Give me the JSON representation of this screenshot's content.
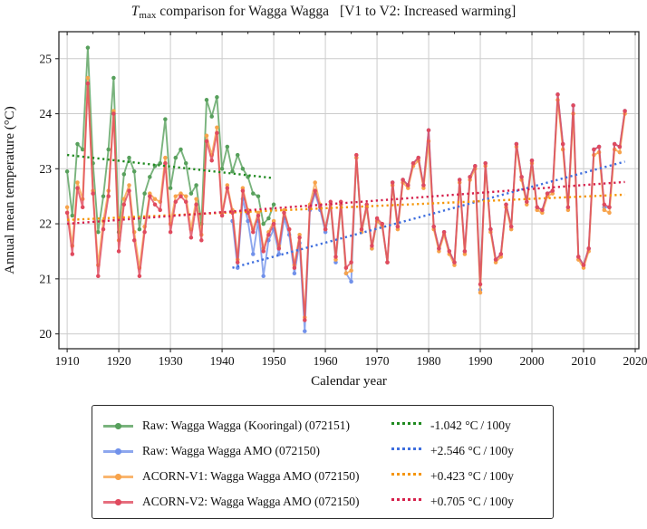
{
  "title": {
    "t": "T",
    "sub": "max",
    "rest": " comparison for Wagga Wagga",
    "bracket": "[V1 to V2: Increased warming]"
  },
  "axes": {
    "xlabel": "Calendar year",
    "ylabel": "Annual mean temperature (°C)",
    "xticks": [
      1910,
      1920,
      1930,
      1940,
      1950,
      1960,
      1970,
      1980,
      1990,
      2000,
      2010,
      2020
    ],
    "yticks": [
      20,
      21,
      22,
      23,
      24,
      25
    ],
    "xlim": [
      1908.4,
      2020.7
    ],
    "ylim": [
      19.73,
      25.49
    ],
    "x_minor_step": 5,
    "grid": true,
    "grid_color": "#cccccc",
    "spine_color": "#2b2b2b",
    "legend_position": "below"
  },
  "chart_data": {
    "type": "line",
    "title": "Tmax comparison for Wagga Wagga [V1 to V2: Increased warming]",
    "xlabel": "Calendar year",
    "ylabel": "Annual mean temperature (°C)",
    "xlim": [
      1908.4,
      2020.7
    ],
    "ylim": [
      19.73,
      25.49
    ],
    "series": [
      {
        "name": "Raw: Wagga Wagga (Kooringal) (072151)",
        "color": "#57a05c",
        "start_year": 1910,
        "values": [
          22.95,
          22.15,
          23.45,
          23.35,
          25.2,
          23.1,
          21.85,
          22.5,
          23.35,
          24.65,
          21.85,
          22.9,
          23.2,
          22.95,
          21.9,
          22.55,
          22.85,
          23.05,
          23.1,
          23.9,
          22.65,
          23.2,
          23.35,
          23.1,
          22.55,
          22.7,
          22.0,
          24.25,
          23.95,
          24.3,
          23.0,
          23.4,
          22.95,
          23.25,
          23.0,
          22.85,
          22.55,
          22.5,
          22.0,
          22.1,
          22.35
        ]
      },
      {
        "name": "Raw: Wagga Wagga AMO (072150)",
        "color": "#7191ea",
        "start_year": 1942,
        "values": [
          22.05,
          21.2,
          22.45,
          22.05,
          21.45,
          22.05,
          21.05,
          21.7,
          21.9,
          21.45,
          22.1,
          21.8,
          21.1,
          21.65,
          20.05,
          22.25,
          22.55,
          22.25,
          21.85,
          22.35,
          21.3,
          22.35,
          21.1,
          20.95,
          23.2,
          21.85,
          22.3,
          21.55,
          22.05,
          21.95,
          21.3,
          22.75,
          21.95,
          22.8,
          22.7,
          23.1,
          23.2,
          22.7,
          23.7,
          21.95,
          21.55,
          21.85,
          21.5,
          21.3,
          22.8,
          21.5,
          22.85,
          23.05,
          20.8,
          23.1,
          21.9,
          21.35,
          21.45,
          22.35,
          21.95,
          23.45,
          22.85,
          22.4,
          23.15,
          22.3,
          22.25,
          22.55,
          22.6,
          24.35,
          23.45,
          22.3,
          24.15,
          21.4,
          21.25,
          21.55,
          23.35,
          23.4,
          22.3,
          22.3,
          23.45,
          23.4,
          24.05
        ]
      },
      {
        "name": "ACORN-V1: Wagga Wagga AMO (072150)",
        "color": "#f7a34b",
        "start_year": 1910,
        "values": [
          22.3,
          21.6,
          22.75,
          22.45,
          24.65,
          22.6,
          21.25,
          22.05,
          22.6,
          24.05,
          21.7,
          22.45,
          22.7,
          21.85,
          21.2,
          21.95,
          22.55,
          22.45,
          22.4,
          23.2,
          22.0,
          22.5,
          22.55,
          22.5,
          21.9,
          22.45,
          21.8,
          23.6,
          23.25,
          23.75,
          22.2,
          22.7,
          22.25,
          21.35,
          22.65,
          22.25,
          21.9,
          22.2,
          21.55,
          21.85,
          22.05,
          21.6,
          22.25,
          21.9,
          21.25,
          21.8,
          20.3,
          22.35,
          22.75,
          22.35,
          21.9,
          22.35,
          21.35,
          22.35,
          21.1,
          21.15,
          23.2,
          21.85,
          22.3,
          21.55,
          22.05,
          21.95,
          21.3,
          22.7,
          21.9,
          22.75,
          22.65,
          23.05,
          23.15,
          22.65,
          23.5,
          21.9,
          21.5,
          21.8,
          21.45,
          21.25,
          22.75,
          21.45,
          22.8,
          23.0,
          20.75,
          23.05,
          21.85,
          21.3,
          21.4,
          22.3,
          21.9,
          23.4,
          22.8,
          22.35,
          23.1,
          22.25,
          22.2,
          22.5,
          22.55,
          24.25,
          23.35,
          22.25,
          24.0,
          21.35,
          21.2,
          21.5,
          23.25,
          23.3,
          22.25,
          22.2,
          23.35,
          23.3,
          24.0
        ]
      },
      {
        "name": "ACORN-V2: Wagga Wagga AMO (072150)",
        "color": "#e04a5e",
        "start_year": 1910,
        "values": [
          22.2,
          21.45,
          22.65,
          22.3,
          24.55,
          22.55,
          21.05,
          21.9,
          22.5,
          24.0,
          21.5,
          22.35,
          22.6,
          21.7,
          21.05,
          21.85,
          22.5,
          22.35,
          22.25,
          23.1,
          21.85,
          22.4,
          22.5,
          22.4,
          21.75,
          22.35,
          21.7,
          23.5,
          23.15,
          23.65,
          22.15,
          22.65,
          22.2,
          21.3,
          22.6,
          22.2,
          21.85,
          22.15,
          21.5,
          21.8,
          22.0,
          21.55,
          22.2,
          21.9,
          21.2,
          21.75,
          20.25,
          22.3,
          22.6,
          22.3,
          21.9,
          22.4,
          21.4,
          22.4,
          21.2,
          21.3,
          23.25,
          21.9,
          22.35,
          21.6,
          22.1,
          22.0,
          21.3,
          22.75,
          21.95,
          22.8,
          22.7,
          23.1,
          23.2,
          22.7,
          23.7,
          21.95,
          21.55,
          21.85,
          21.5,
          21.3,
          22.8,
          21.5,
          22.85,
          23.05,
          20.9,
          23.1,
          21.9,
          21.35,
          21.45,
          22.35,
          21.95,
          23.45,
          22.85,
          22.4,
          23.15,
          22.3,
          22.25,
          22.55,
          22.6,
          24.35,
          23.45,
          22.3,
          24.15,
          21.4,
          21.25,
          21.55,
          23.35,
          23.4,
          22.35,
          22.3,
          23.45,
          23.4,
          24.05
        ]
      }
    ],
    "trends": [
      {
        "label": "-1.042 °C / 100y",
        "color": "#208a20",
        "x0": 1910,
        "x1": 1950,
        "y0": 23.25,
        "y1": 22.83
      },
      {
        "label": "+2.546 °C / 100y",
        "color": "#3e6ede",
        "x0": 1942,
        "x1": 2018,
        "y0": 21.2,
        "y1": 23.13
      },
      {
        "label": "+0.423 °C / 100y",
        "color": "#f59505",
        "x0": 1910,
        "x1": 2018,
        "y0": 22.07,
        "y1": 22.53
      },
      {
        "label": "+0.705 °C / 100y",
        "color": "#d6204b",
        "x0": 1910,
        "x1": 2018,
        "y0": 22.0,
        "y1": 22.76
      }
    ],
    "legend_position": "below"
  }
}
